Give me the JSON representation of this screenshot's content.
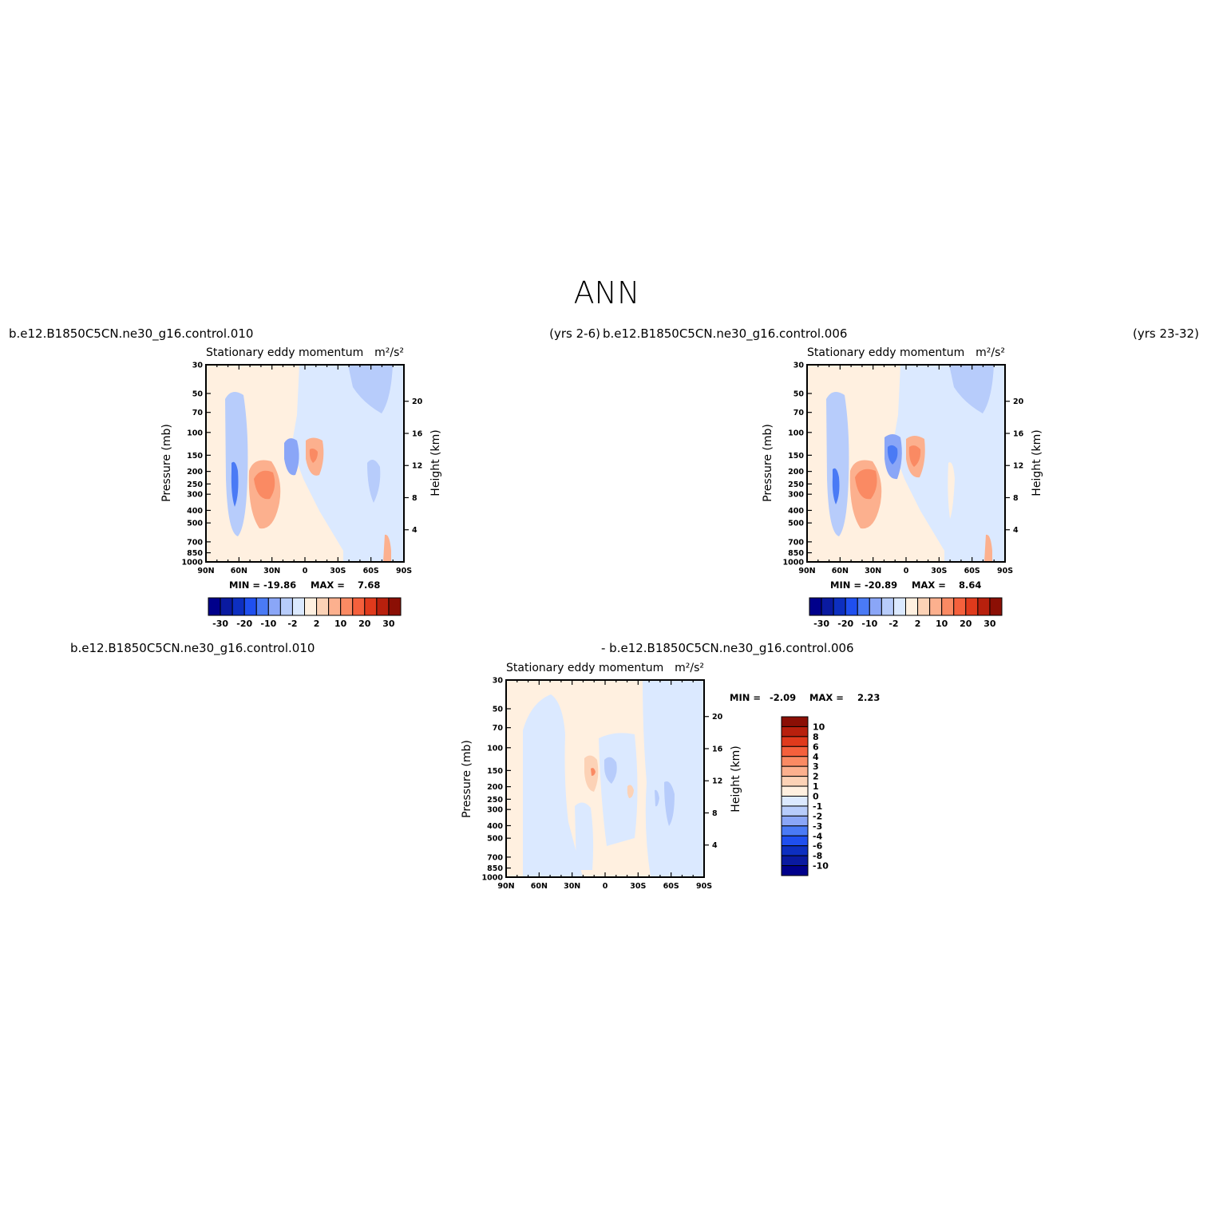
{
  "page_title": "ANN",
  "colors": {
    "abs_levels": [
      "#00008b",
      "#0a1aa0",
      "#0d2fc0",
      "#1f4fef",
      "#4a7af5",
      "#8aa6f7",
      "#b7ccfb",
      "#dbe9ff",
      "#fff0e0",
      "#fcd2b6",
      "#fcb08e",
      "#fa8a63",
      "#f5603c",
      "#e03a1c",
      "#b8200d",
      "#8b0f05"
    ],
    "diff_levels": [
      "#00008b",
      "#0a1aa0",
      "#0d2fc0",
      "#1f4fef",
      "#4a7af5",
      "#8aa6f7",
      "#b7ccfb",
      "#dbe9ff",
      "#fff0e0",
      "#fcd2b6",
      "#fcb08e",
      "#fa8a63",
      "#f5603c",
      "#e03a1c",
      "#b8200d",
      "#8b0f05"
    ]
  },
  "panels": [
    {
      "case_left": "b.e12.B1850C5CN.ne30_g16.control.010",
      "case_right": "(yrs 2-6)",
      "title_left": "Stationary  eddy  momentum",
      "units": "m²/s²",
      "min_label": "MIN =",
      "min_value": "-19.86",
      "max_label": "MAX =",
      "max_value": "7.68"
    },
    {
      "case_left": "b.e12.B1850C5CN.ne30_g16.control.006",
      "case_right": "(yrs 23-32)",
      "title_left": "Stationary  eddy  momentum",
      "units": "m²/s²",
      "min_label": "MIN =",
      "min_value": "-20.89",
      "max_label": "MAX =",
      "max_value": "8.64"
    },
    {
      "case_left": "b.e12.B1850C5CN.ne30_g16.control.010",
      "case_right": "- b.e12.B1850C5CN.ne30_g16.control.006",
      "title_left": "Stationary  eddy  momentum",
      "units": "m²/s²",
      "min_label": "MIN =",
      "min_value": "-2.09",
      "max_label": "MAX =",
      "max_value": "2.23"
    }
  ],
  "chart_data": [
    {
      "type": "heatmap",
      "panel": "control.010",
      "x_tick_labels": [
        "90N",
        "60N",
        "30N",
        "0",
        "30S",
        "60S",
        "90S"
      ],
      "y_left_label": "Pressure  (mb)",
      "y_left_ticks": [
        "30",
        "50",
        "70",
        "100",
        "150",
        "200",
        "250",
        "300",
        "400",
        "500",
        "700",
        "850",
        "1000"
      ],
      "y_right_label": "Height  (km)",
      "y_right_ticks": [
        "4",
        "8",
        "12",
        "16",
        "20"
      ],
      "colorbar_labels": [
        "-30",
        "-20",
        "-10",
        "-2",
        "2",
        "10",
        "20",
        "30"
      ],
      "value_range": [
        -19.86,
        7.68
      ],
      "features": [
        {
          "lat": 65,
          "p": 270,
          "v": -19.86
        },
        {
          "lat": 45,
          "p": 250,
          "v": 6
        },
        {
          "lat": 13,
          "p": 150,
          "v": -8
        },
        {
          "lat": -10,
          "p": 150,
          "v": 7.68
        },
        {
          "lat": -65,
          "p": 260,
          "v": -3
        },
        {
          "lat": -42,
          "p": 35,
          "v": -3
        }
      ]
    },
    {
      "type": "heatmap",
      "panel": "control.006",
      "x_tick_labels": [
        "90N",
        "60N",
        "30N",
        "0",
        "30S",
        "60S",
        "90S"
      ],
      "y_left_label": "Pressure  (mb)",
      "y_left_ticks": [
        "30",
        "50",
        "70",
        "100",
        "150",
        "200",
        "250",
        "300",
        "400",
        "500",
        "700",
        "850",
        "1000"
      ],
      "y_right_label": "Height  (km)",
      "y_right_ticks": [
        "4",
        "8",
        "12",
        "16",
        "20"
      ],
      "colorbar_labels": [
        "-30",
        "-20",
        "-10",
        "-2",
        "2",
        "10",
        "20",
        "30"
      ],
      "value_range": [
        -20.89,
        8.64
      ],
      "features": [
        {
          "lat": 65,
          "p": 270,
          "v": -20.89
        },
        {
          "lat": 45,
          "p": 250,
          "v": 7
        },
        {
          "lat": 13,
          "p": 150,
          "v": -9
        },
        {
          "lat": -10,
          "p": 150,
          "v": 8.64
        },
        {
          "lat": -65,
          "p": 260,
          "v": -2
        },
        {
          "lat": -42,
          "p": 35,
          "v": -3
        }
      ]
    },
    {
      "type": "heatmap",
      "panel": "difference",
      "x_tick_labels": [
        "90N",
        "60N",
        "30N",
        "0",
        "30S",
        "60S",
        "90S"
      ],
      "y_left_label": "Pressure  (mb)",
      "y_left_ticks": [
        "30",
        "50",
        "70",
        "100",
        "150",
        "200",
        "250",
        "300",
        "400",
        "500",
        "700",
        "850",
        "1000"
      ],
      "y_right_label": "Height  (km)",
      "y_right_ticks": [
        "4",
        "8",
        "12",
        "16",
        "20"
      ],
      "colorbar_labels": [
        "10",
        "8",
        "6",
        "4",
        "3",
        "2",
        "1",
        "0",
        "-1",
        "-2",
        "-3",
        "-4",
        "-6",
        "-8",
        "-10"
      ],
      "value_range": [
        -2.09,
        2.23
      ],
      "features": [
        {
          "lat": 12,
          "p": 150,
          "v": 2.23
        },
        {
          "lat": -5,
          "p": 150,
          "v": -2.09
        },
        {
          "lat": -75,
          "p": 300,
          "v": -1
        },
        {
          "lat": -20,
          "p": 220,
          "v": 1
        }
      ]
    }
  ]
}
